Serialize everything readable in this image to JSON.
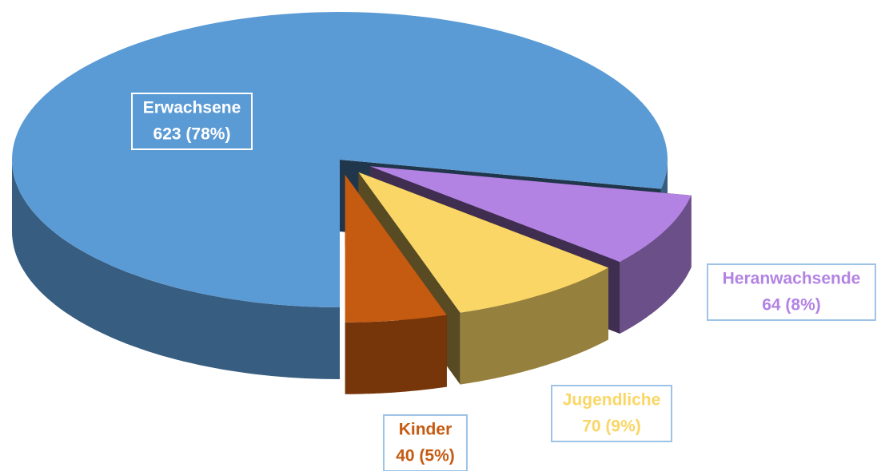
{
  "chart_data": {
    "type": "pie3d",
    "categories": [
      "Erwachsene",
      "Heranwachsende",
      "Jugendliche",
      "Kinder"
    ],
    "values": [
      623,
      64,
      70,
      40
    ],
    "value_labels": [
      "623 (78%)",
      "64 (8%)",
      "70 (9%)",
      "40 (5%)"
    ],
    "colors": [
      "#5b9bd5",
      "#b383e3",
      "#fad666",
      "#c55a11"
    ],
    "exploded": [
      false,
      true,
      true,
      true
    ]
  }
}
